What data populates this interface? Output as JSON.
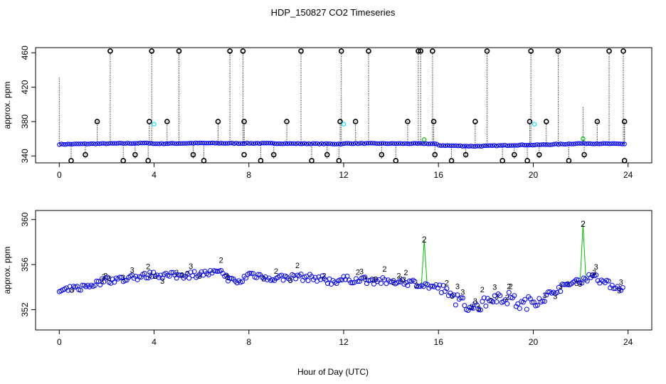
{
  "chart_data": {
    "type": "scatter",
    "title": "HDP_150827  CO2 Timeseries",
    "xlabel": "Hour of Day (UTC)",
    "xlim": [
      -1,
      25
    ],
    "xticks": [
      0,
      4,
      8,
      12,
      16,
      20,
      24
    ],
    "colors": {
      "raw": "#0000ff",
      "flagged": "#000000",
      "flag1": "#00e5ff",
      "flag2": "#00c000",
      "flag3": "#0000ff"
    },
    "panels": [
      {
        "name": "raw",
        "ylabel": "approx. ppm",
        "ylim": [
          332,
          466
        ],
        "yticks": [
          340,
          380,
          420,
          460
        ],
        "baseline": [
          [
            0,
            353.6
          ],
          [
            2,
            354.4
          ],
          [
            3.9,
            355.0
          ],
          [
            3.95,
            354.2
          ],
          [
            6,
            355.0
          ],
          [
            7.8,
            354.6
          ],
          [
            7.9,
            354.8
          ],
          [
            10,
            354.4
          ],
          [
            12,
            354.0
          ],
          [
            12.1,
            354.6
          ],
          [
            15.5,
            354.3
          ],
          [
            15.9,
            354.0
          ],
          [
            16,
            352.4
          ],
          [
            17.5,
            351.3
          ],
          [
            19.5,
            352.8
          ],
          [
            20,
            352.8
          ],
          [
            21,
            353.6
          ],
          [
            22,
            354.6
          ],
          [
            23.8,
            354.0
          ]
        ],
        "spikes": [
          [
            0,
            432
          ],
          [
            2.15,
            462
          ],
          [
            3.9,
            462
          ],
          [
            5.05,
            462
          ],
          [
            7.2,
            462
          ],
          [
            7.75,
            462
          ],
          [
            10.2,
            462
          ],
          [
            11.9,
            462
          ],
          [
            13.05,
            462
          ],
          [
            15.15,
            462
          ],
          [
            15.25,
            462
          ],
          [
            15.75,
            462
          ],
          [
            18.05,
            462
          ],
          [
            19.9,
            462
          ],
          [
            21.05,
            462
          ],
          [
            23.2,
            462
          ],
          [
            23.8,
            462
          ],
          [
            22.1,
            398
          ]
        ],
        "flagged_high": [
          2.15,
          3.9,
          5.05,
          7.2,
          7.75,
          10.2,
          11.9,
          13.05,
          15.15,
          15.25,
          15.75,
          18.05,
          19.9,
          21.05,
          23.2,
          23.8
        ],
        "flagged_mid": [
          1.6,
          3.8,
          4.55,
          6.7,
          7.8,
          9.6,
          11.85,
          12.5,
          14.7,
          15.8,
          17.55,
          19.85,
          20.55,
          22.7,
          23.85
        ],
        "flagged_low": [
          0.5,
          1.1,
          2.7,
          3.2,
          3.75,
          5.65,
          6.1,
          7.8,
          8.5,
          9.05,
          10.65,
          11.3,
          11.8,
          13.6,
          14.2,
          15.85,
          16.55,
          17.15,
          18.7,
          19.2,
          19.75,
          20.25,
          21.5,
          22.15,
          23.85
        ],
        "flag1_points": [
          [
            4.0,
            377
          ],
          [
            12.0,
            377
          ],
          [
            20.05,
            377
          ]
        ],
        "flag2_points": [
          [
            15.4,
            359
          ],
          [
            22.1,
            360
          ]
        ]
      },
      {
        "name": "zoom",
        "ylabel": "approx. ppm",
        "ylim": [
          350.2,
          360.8
        ],
        "yticks": [
          352,
          356,
          360
        ],
        "baseline": [
          [
            0,
            353.6
          ],
          [
            1,
            354.0
          ],
          [
            2,
            354.6
          ],
          [
            3,
            354.8
          ],
          [
            4,
            355.1
          ],
          [
            5,
            355.0
          ],
          [
            6,
            355.2
          ],
          [
            6.8,
            355.3
          ],
          [
            7.2,
            354.6
          ],
          [
            7.6,
            354.4
          ],
          [
            8,
            355.2
          ],
          [
            9,
            354.8
          ],
          [
            10,
            354.9
          ],
          [
            11,
            354.8
          ],
          [
            11.5,
            354.5
          ],
          [
            12,
            354.7
          ],
          [
            13,
            354.6
          ],
          [
            14,
            354.5
          ],
          [
            15,
            354.4
          ],
          [
            15.8,
            354.0
          ],
          [
            16,
            354.0
          ],
          [
            16.5,
            353.2
          ],
          [
            17,
            352.6
          ],
          [
            17.5,
            352.2
          ],
          [
            18,
            352.7
          ],
          [
            18.5,
            353.2
          ],
          [
            19,
            353.0
          ],
          [
            19.5,
            352.4
          ],
          [
            20,
            352.8
          ],
          [
            20.5,
            353.2
          ],
          [
            21,
            353.8
          ],
          [
            21.5,
            354.2
          ],
          [
            22,
            354.6
          ],
          [
            22.5,
            355.0
          ],
          [
            23,
            354.4
          ],
          [
            23.8,
            353.8
          ]
        ],
        "spikes": [
          [
            15.4,
            358.2
          ],
          [
            22.1,
            359.6
          ]
        ],
        "marker_labels": {
          "flag2": "2",
          "flag3": "3"
        }
      }
    ]
  }
}
